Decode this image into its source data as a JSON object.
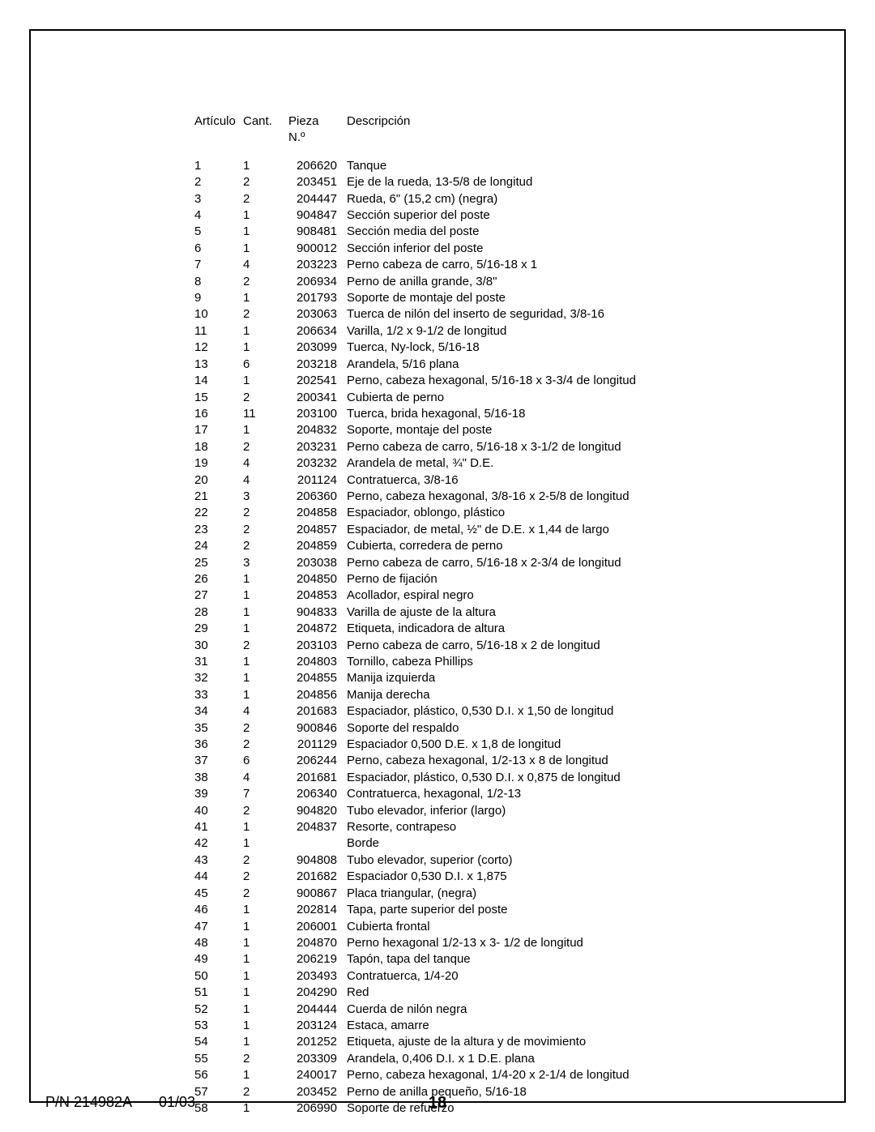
{
  "headers": {
    "articulo": "Artículo",
    "cant": "Cant.",
    "pieza": "Pieza N.º",
    "descripcion": "Descripción"
  },
  "rows": [
    {
      "a": "1",
      "c": "1",
      "p": "206620",
      "d": "Tanque"
    },
    {
      "a": "2",
      "c": "2",
      "p": "203451",
      "d": "Eje de la rueda, 13-5/8 de longitud"
    },
    {
      "a": "3",
      "c": "2",
      "p": "204447",
      "d": "Rueda, 6\" (15,2 cm) (negra)"
    },
    {
      "a": "4",
      "c": "1",
      "p": "904847",
      "d": "Sección superior del poste"
    },
    {
      "a": "5",
      "c": "1",
      "p": "908481",
      "d": "Sección media del poste"
    },
    {
      "a": "6",
      "c": "1",
      "p": "900012",
      "d": "Sección inferior del poste"
    },
    {
      "a": "7",
      "c": "4",
      "p": "203223",
      "d": "Perno cabeza de carro, 5/16-18 x 1"
    },
    {
      "a": "8",
      "c": "2",
      "p": "206934",
      "d": "Perno de anilla grande, 3/8\""
    },
    {
      "a": "9",
      "c": "1",
      "p": "201793",
      "d": "Soporte de montaje del poste"
    },
    {
      "a": "10",
      "c": "2",
      "p": "203063",
      "d": "Tuerca de nilón del inserto de seguridad, 3/8-16"
    },
    {
      "a": "11",
      "c": "1",
      "p": "206634",
      "d": "Varilla, 1/2 x 9-1/2 de longitud"
    },
    {
      "a": "12",
      "c": "1",
      "p": "203099",
      "d": "Tuerca, Ny-lock, 5/16-18"
    },
    {
      "a": "13",
      "c": "6",
      "p": "203218",
      "d": "Arandela, 5/16 plana"
    },
    {
      "a": "14",
      "c": "1",
      "p": "202541",
      "d": "Perno, cabeza hexagonal, 5/16-18 x 3-3/4 de longitud"
    },
    {
      "a": "15",
      "c": "2",
      "p": "200341",
      "d": "Cubierta de perno"
    },
    {
      "a": "16",
      "c": "11",
      "p": "203100",
      "d": "Tuerca, brida hexagonal, 5/16-18"
    },
    {
      "a": "17",
      "c": "1",
      "p": "204832",
      "d": "Soporte, montaje del poste"
    },
    {
      "a": "18",
      "c": "2",
      "p": "203231",
      "d": "Perno cabeza de carro, 5/16-18 x 3-1/2 de longitud"
    },
    {
      "a": "19",
      "c": "4",
      "p": "203232",
      "d": "Arandela de metal, ¾\" D.E."
    },
    {
      "a": "20",
      "c": "4",
      "p": "201124",
      "d": "Contratuerca, 3/8-16"
    },
    {
      "a": "21",
      "c": "3",
      "p": "206360",
      "d": "Perno, cabeza hexagonal, 3/8-16 x 2-5/8 de longitud"
    },
    {
      "a": "22",
      "c": "2",
      "p": "204858",
      "d": "Espaciador, oblongo, plástico"
    },
    {
      "a": "23",
      "c": "2",
      "p": "204857",
      "d": "Espaciador, de metal, ½\" de D.E. x 1,44 de largo"
    },
    {
      "a": "24",
      "c": "2",
      "p": "204859",
      "d": "Cubierta, corredera de perno"
    },
    {
      "a": "25",
      "c": "3",
      "p": "203038",
      "d": "Perno cabeza de carro, 5/16-18 x 2-3/4 de longitud"
    },
    {
      "a": "26",
      "c": "1",
      "p": "204850",
      "d": "Perno de fijación"
    },
    {
      "a": "27",
      "c": "1",
      "p": "204853",
      "d": "Acollador, espiral negro"
    },
    {
      "a": "28",
      "c": "1",
      "p": "904833",
      "d": "Varilla de ajuste de la altura"
    },
    {
      "a": "29",
      "c": "1",
      "p": "204872",
      "d": "Etiqueta, indicadora de altura"
    },
    {
      "a": "30",
      "c": "2",
      "p": "203103",
      "d": "Perno cabeza de carro, 5/16-18 x 2 de longitud"
    },
    {
      "a": "31",
      "c": "1",
      "p": "204803",
      "d": "Tornillo, cabeza Phillips"
    },
    {
      "a": "32",
      "c": "1",
      "p": "204855",
      "d": "Manija izquierda"
    },
    {
      "a": "33",
      "c": "1",
      "p": "204856",
      "d": "Manija derecha"
    },
    {
      "a": "34",
      "c": "4",
      "p": "201683",
      "d": "Espaciador, plástico, 0,530 D.I. x 1,50 de longitud"
    },
    {
      "a": "35",
      "c": "2",
      "p": "900846",
      "d": "Soporte del respaldo"
    },
    {
      "a": "36",
      "c": "2",
      "p": "201129",
      "d": "Espaciador 0,500 D.E. x 1,8 de longitud"
    },
    {
      "a": "37",
      "c": "6",
      "p": "206244",
      "d": "Perno, cabeza hexagonal, 1/2-13 x 8 de longitud"
    },
    {
      "a": "38",
      "c": "4",
      "p": "201681",
      "d": "Espaciador, plástico, 0,530 D.I. x 0,875 de longitud"
    },
    {
      "a": "39",
      "c": "7",
      "p": "206340",
      "d": "Contratuerca, hexagonal, 1/2-13"
    },
    {
      "a": "40",
      "c": "2",
      "p": "904820",
      "d": "Tubo elevador, inferior (largo)"
    },
    {
      "a": "41",
      "c": "1",
      "p": "204837",
      "d": "Resorte, contrapeso"
    },
    {
      "a": "42",
      "c": "1",
      "p": "",
      "d": "Borde"
    },
    {
      "a": "43",
      "c": "2",
      "p": "904808",
      "d": "Tubo elevador, superior (corto)"
    },
    {
      "a": "44",
      "c": "2",
      "p": "201682",
      "d": "Espaciador 0,530 D.I. x 1,875"
    },
    {
      "a": "45",
      "c": "2",
      "p": "900867",
      "d": "Placa triangular, (negra)"
    },
    {
      "a": "46",
      "c": "1",
      "p": "202814",
      "d": "Tapa, parte superior del poste"
    },
    {
      "a": "47",
      "c": "1",
      "p": "206001",
      "d": "Cubierta frontal"
    },
    {
      "a": "48",
      "c": "1",
      "p": "204870",
      "d": "Perno hexagonal 1/2-13 x 3- 1/2 de longitud"
    },
    {
      "a": "49",
      "c": "1",
      "p": "206219",
      "d": "Tapón, tapa del tanque"
    },
    {
      "a": "50",
      "c": "1",
      "p": "203493",
      "d": "Contratuerca, 1/4-20"
    },
    {
      "a": "51",
      "c": "1",
      "p": "204290",
      "d": "Red"
    },
    {
      "a": "52",
      "c": "1",
      "p": "204444",
      "d": "Cuerda de nilón negra"
    },
    {
      "a": "53",
      "c": "1",
      "p": "203124",
      "d": "Estaca, amarre"
    },
    {
      "a": "54",
      "c": "1",
      "p": "201252",
      "d": "Etiqueta, ajuste de la altura y de movimiento"
    },
    {
      "a": "55",
      "c": "2",
      "p": "203309",
      "d": "Arandela, 0,406 D.I. x 1 D.E. plana"
    },
    {
      "a": "56",
      "c": "1",
      "p": "240017",
      "d": "Perno, cabeza hexagonal, 1/4-20 x 2-1/4 de longitud"
    },
    {
      "a": "57",
      "c": "2",
      "p": "203452",
      "d": "Perno de anilla pequeño, 5/16-18"
    },
    {
      "a": "58",
      "c": "1",
      "p": "206990",
      "d": "Soporte de refuerzo"
    }
  ],
  "footer": {
    "pn": "P/N 214982A",
    "date": "01/03",
    "page": "18"
  }
}
